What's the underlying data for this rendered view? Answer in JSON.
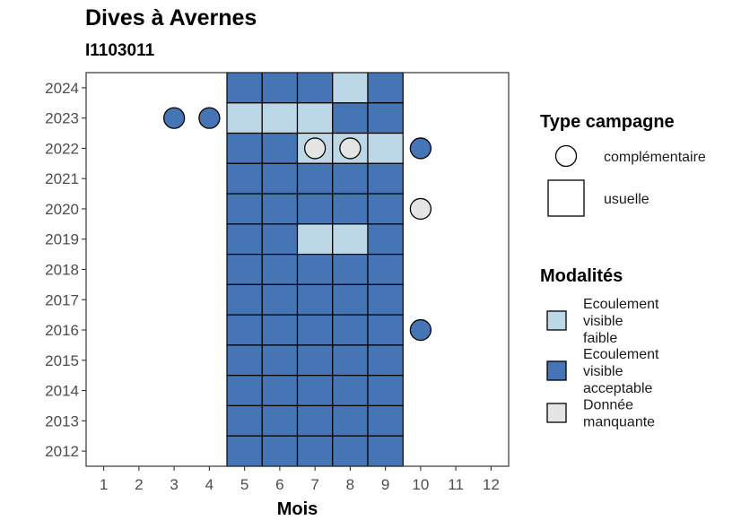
{
  "title": "Dives à Avernes",
  "subtitle": "I1103011",
  "colors": {
    "Ecoulement visible faible": "#bcd8e6",
    "Ecoulement visible acceptable": "#4575b4",
    "Donnée manquante": "#e5e5e5"
  },
  "chart_data": {
    "type": "heatmap",
    "xlabel": "Mois",
    "ylabel": "",
    "x_ticks": [
      1,
      2,
      3,
      4,
      5,
      6,
      7,
      8,
      9,
      10,
      11,
      12
    ],
    "y_ticks": [
      2012,
      2013,
      2014,
      2015,
      2016,
      2017,
      2018,
      2019,
      2020,
      2021,
      2022,
      2023,
      2024
    ],
    "xlim": [
      0.5,
      12.5
    ],
    "ylim": [
      2011.5,
      2024.5
    ],
    "grid": false,
    "legend_position": "right",
    "legend_type": {
      "title": "Type campagne",
      "items": [
        {
          "label": "complémentaire",
          "shape": "circle"
        },
        {
          "label": "usuelle",
          "shape": "square"
        }
      ]
    },
    "legend_modalites": {
      "title": "Modalités",
      "items": [
        {
          "lines": [
            "Ecoulement",
            "visible",
            "faible"
          ],
          "key": "Ecoulement visible faible"
        },
        {
          "lines": [
            "Ecoulement",
            "visible",
            "acceptable"
          ],
          "key": "Ecoulement visible acceptable"
        },
        {
          "lines": [
            "Donnée",
            "manquante"
          ],
          "key": "Donnée manquante"
        }
      ]
    },
    "usuelle": [
      {
        "year": 2024,
        "months": {
          "5": "Ecoulement visible acceptable",
          "6": "Ecoulement visible acceptable",
          "7": "Ecoulement visible acceptable",
          "8": "Ecoulement visible faible",
          "9": "Ecoulement visible acceptable"
        }
      },
      {
        "year": 2023,
        "months": {
          "5": "Ecoulement visible faible",
          "6": "Ecoulement visible faible",
          "7": "Ecoulement visible faible",
          "8": "Ecoulement visible acceptable",
          "9": "Ecoulement visible acceptable"
        }
      },
      {
        "year": 2022,
        "months": {
          "5": "Ecoulement visible acceptable",
          "6": "Ecoulement visible acceptable",
          "7": "Ecoulement visible faible",
          "8": "Ecoulement visible faible",
          "9": "Ecoulement visible faible"
        }
      },
      {
        "year": 2021,
        "months": {
          "5": "Ecoulement visible acceptable",
          "6": "Ecoulement visible acceptable",
          "7": "Ecoulement visible acceptable",
          "8": "Ecoulement visible acceptable",
          "9": "Ecoulement visible acceptable"
        }
      },
      {
        "year": 2020,
        "months": {
          "5": "Ecoulement visible acceptable",
          "6": "Ecoulement visible acceptable",
          "7": "Ecoulement visible acceptable",
          "8": "Ecoulement visible acceptable",
          "9": "Ecoulement visible acceptable"
        }
      },
      {
        "year": 2019,
        "months": {
          "5": "Ecoulement visible acceptable",
          "6": "Ecoulement visible acceptable",
          "7": "Ecoulement visible faible",
          "8": "Ecoulement visible faible",
          "9": "Ecoulement visible acceptable"
        }
      },
      {
        "year": 2018,
        "months": {
          "5": "Ecoulement visible acceptable",
          "6": "Ecoulement visible acceptable",
          "7": "Ecoulement visible acceptable",
          "8": "Ecoulement visible acceptable",
          "9": "Ecoulement visible acceptable"
        }
      },
      {
        "year": 2017,
        "months": {
          "5": "Ecoulement visible acceptable",
          "6": "Ecoulement visible acceptable",
          "7": "Ecoulement visible acceptable",
          "8": "Ecoulement visible acceptable",
          "9": "Ecoulement visible acceptable"
        }
      },
      {
        "year": 2016,
        "months": {
          "5": "Ecoulement visible acceptable",
          "6": "Ecoulement visible acceptable",
          "7": "Ecoulement visible acceptable",
          "8": "Ecoulement visible acceptable",
          "9": "Ecoulement visible acceptable"
        }
      },
      {
        "year": 2015,
        "months": {
          "5": "Ecoulement visible acceptable",
          "6": "Ecoulement visible acceptable",
          "7": "Ecoulement visible acceptable",
          "8": "Ecoulement visible acceptable",
          "9": "Ecoulement visible acceptable"
        }
      },
      {
        "year": 2014,
        "months": {
          "5": "Ecoulement visible acceptable",
          "6": "Ecoulement visible acceptable",
          "7": "Ecoulement visible acceptable",
          "8": "Ecoulement visible acceptable",
          "9": "Ecoulement visible acceptable"
        }
      },
      {
        "year": 2013,
        "months": {
          "5": "Ecoulement visible acceptable",
          "6": "Ecoulement visible acceptable",
          "7": "Ecoulement visible acceptable",
          "8": "Ecoulement visible acceptable",
          "9": "Ecoulement visible acceptable"
        }
      },
      {
        "year": 2012,
        "months": {
          "5": "Ecoulement visible acceptable",
          "6": "Ecoulement visible acceptable",
          "7": "Ecoulement visible acceptable",
          "8": "Ecoulement visible acceptable",
          "9": "Ecoulement visible acceptable"
        }
      }
    ],
    "complementaire": [
      {
        "year": 2023,
        "month": 3,
        "value": "Ecoulement visible acceptable"
      },
      {
        "year": 2023,
        "month": 4,
        "value": "Ecoulement visible acceptable"
      },
      {
        "year": 2022,
        "month": 7,
        "value": "Donnée manquante"
      },
      {
        "year": 2022,
        "month": 8,
        "value": "Donnée manquante"
      },
      {
        "year": 2022,
        "month": 10,
        "value": "Ecoulement visible acceptable"
      },
      {
        "year": 2020,
        "month": 10,
        "value": "Donnée manquante"
      },
      {
        "year": 2016,
        "month": 10,
        "value": "Ecoulement visible acceptable"
      }
    ]
  }
}
